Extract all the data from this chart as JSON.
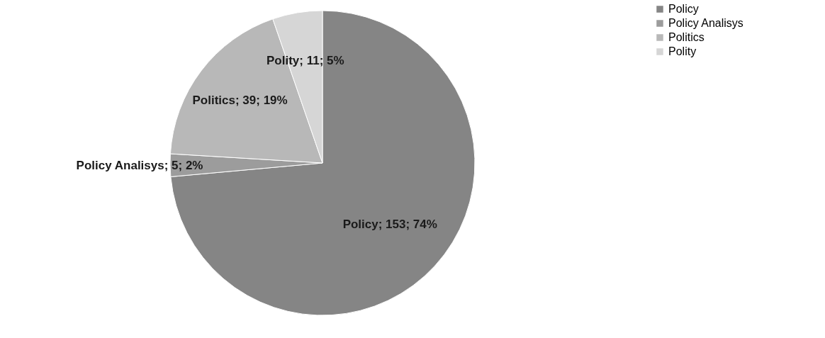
{
  "chart_data": {
    "type": "pie",
    "categories": [
      "Policy",
      "Policy Analisys",
      "Politics",
      "Polity"
    ],
    "values": [
      153,
      5,
      39,
      11
    ],
    "colors": [
      "#858585",
      "#9c9c9c",
      "#b8b8b8",
      "#d6d6d6"
    ],
    "value_labels": [
      "Policy; 153; 74%",
      "Policy Analisys; 5; 2%",
      "Politics; 39; 19%",
      "Polity; 11; 5%"
    ],
    "legend": "right"
  }
}
